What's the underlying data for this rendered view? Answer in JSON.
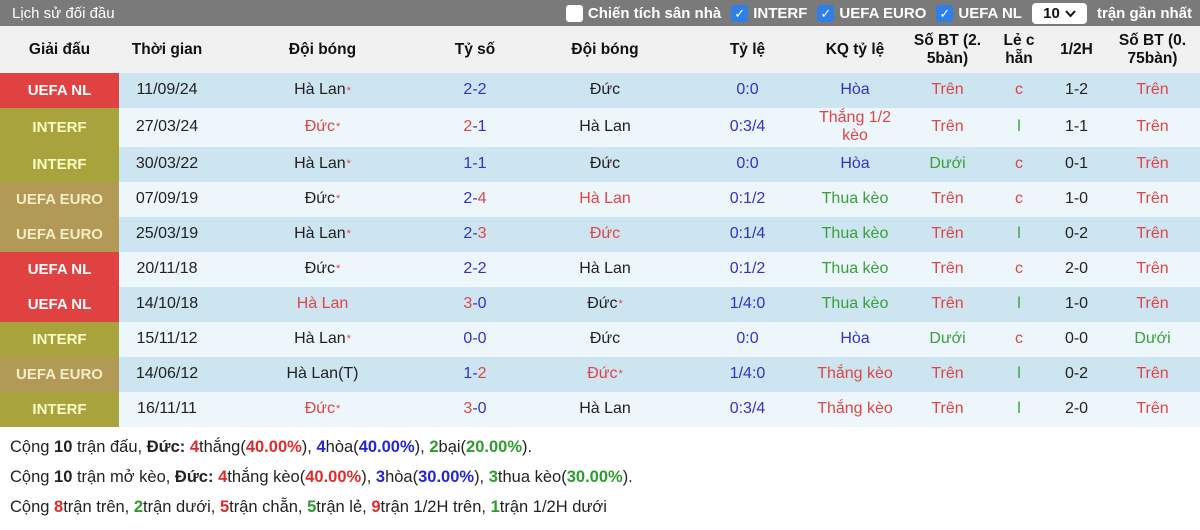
{
  "topbar": {
    "title": "Lịch sử đối đầu",
    "home_filter": {
      "label": "Chiến tích sân nhà",
      "checked": false
    },
    "filters": [
      {
        "label": "INTERF",
        "checked": true
      },
      {
        "label": "UEFA EURO",
        "checked": true
      },
      {
        "label": "UEFA NL",
        "checked": true
      }
    ],
    "match_count": "10",
    "match_count_suffix": "trận gần nhất",
    "checkbox_color": "#2f7fe8"
  },
  "table": {
    "headers": [
      "Giải đấu",
      "Thời gian",
      "Đội bóng",
      "Tỷ số",
      "Đội bóng",
      "Tỷ lệ",
      "KQ tỷ lệ",
      "Số BT (2.\n5bàn)",
      "Lẻ c\nhẵn",
      "1/2H",
      "Số BT (0.\n75bàn)"
    ],
    "rows": [
      {
        "league": "UEFA NL",
        "league_style": "red",
        "date": "11/09/24",
        "home": {
          "t": "Hà Lan",
          "c": "black",
          "star": true
        },
        "score": [
          {
            "t": "2",
            "c": "blue"
          },
          {
            "t": "-",
            "c": "blue"
          },
          {
            "t": "2",
            "c": "blue"
          }
        ],
        "away": {
          "t": "Đức",
          "c": "black",
          "star": false
        },
        "odds": "0:0",
        "kq": {
          "t": "Hòa",
          "c": "blue"
        },
        "bt25": {
          "t": "Trên",
          "c": "red"
        },
        "oe": {
          "t": "c",
          "c": "red"
        },
        "h12": "1-2",
        "bt075": {
          "t": "Trên",
          "c": "red"
        }
      },
      {
        "league": "INTERF",
        "league_style": "olive",
        "date": "27/03/24",
        "home": {
          "t": "Đức",
          "c": "red",
          "star": true
        },
        "score": [
          {
            "t": "2",
            "c": "red"
          },
          {
            "t": "-",
            "c": "blue"
          },
          {
            "t": "1",
            "c": "blue"
          }
        ],
        "away": {
          "t": "Hà Lan",
          "c": "black",
          "star": false
        },
        "odds": "0:3/4",
        "kq": {
          "t": "Thắng 1/2 kèo",
          "c": "red"
        },
        "bt25": {
          "t": "Trên",
          "c": "red"
        },
        "oe": {
          "t": "l",
          "c": "green"
        },
        "h12": "1-1",
        "bt075": {
          "t": "Trên",
          "c": "red"
        }
      },
      {
        "league": "INTERF",
        "league_style": "olive",
        "date": "30/03/22",
        "home": {
          "t": "Hà Lan",
          "c": "black",
          "star": true
        },
        "score": [
          {
            "t": "1",
            "c": "blue"
          },
          {
            "t": "-",
            "c": "blue"
          },
          {
            "t": "1",
            "c": "blue"
          }
        ],
        "away": {
          "t": "Đức",
          "c": "black",
          "star": false
        },
        "odds": "0:0",
        "kq": {
          "t": "Hòa",
          "c": "blue"
        },
        "bt25": {
          "t": "Dưới",
          "c": "green"
        },
        "oe": {
          "t": "c",
          "c": "red"
        },
        "h12": "0-1",
        "bt075": {
          "t": "Trên",
          "c": "red"
        }
      },
      {
        "league": "UEFA EURO",
        "league_style": "tan",
        "date": "07/09/19",
        "home": {
          "t": "Đức",
          "c": "black",
          "star": true
        },
        "score": [
          {
            "t": "2",
            "c": "blue"
          },
          {
            "t": "-",
            "c": "blue"
          },
          {
            "t": "4",
            "c": "red"
          }
        ],
        "away": {
          "t": "Hà Lan",
          "c": "red",
          "star": false
        },
        "odds": "0:1/2",
        "kq": {
          "t": "Thua kèo",
          "c": "green"
        },
        "bt25": {
          "t": "Trên",
          "c": "red"
        },
        "oe": {
          "t": "c",
          "c": "red"
        },
        "h12": "1-0",
        "bt075": {
          "t": "Trên",
          "c": "red"
        }
      },
      {
        "league": "UEFA EURO",
        "league_style": "tan",
        "date": "25/03/19",
        "home": {
          "t": "Hà Lan",
          "c": "black",
          "star": true
        },
        "score": [
          {
            "t": "2",
            "c": "blue"
          },
          {
            "t": "-",
            "c": "blue"
          },
          {
            "t": "3",
            "c": "red"
          }
        ],
        "away": {
          "t": "Đức",
          "c": "red",
          "star": false
        },
        "odds": "0:1/4",
        "kq": {
          "t": "Thua kèo",
          "c": "green"
        },
        "bt25": {
          "t": "Trên",
          "c": "red"
        },
        "oe": {
          "t": "l",
          "c": "green"
        },
        "h12": "0-2",
        "bt075": {
          "t": "Trên",
          "c": "red"
        }
      },
      {
        "league": "UEFA NL",
        "league_style": "red",
        "date": "20/11/18",
        "home": {
          "t": "Đức",
          "c": "black",
          "star": true
        },
        "score": [
          {
            "t": "2",
            "c": "blue"
          },
          {
            "t": "-",
            "c": "blue"
          },
          {
            "t": "2",
            "c": "blue"
          }
        ],
        "away": {
          "t": "Hà Lan",
          "c": "black",
          "star": false
        },
        "odds": "0:1/2",
        "kq": {
          "t": "Thua kèo",
          "c": "green"
        },
        "bt25": {
          "t": "Trên",
          "c": "red"
        },
        "oe": {
          "t": "c",
          "c": "red"
        },
        "h12": "2-0",
        "bt075": {
          "t": "Trên",
          "c": "red"
        }
      },
      {
        "league": "UEFA NL",
        "league_style": "red",
        "date": "14/10/18",
        "home": {
          "t": "Hà Lan",
          "c": "red",
          "star": false
        },
        "score": [
          {
            "t": "3",
            "c": "red"
          },
          {
            "t": "-",
            "c": "blue"
          },
          {
            "t": "0",
            "c": "blue"
          }
        ],
        "away": {
          "t": "Đức",
          "c": "black",
          "star": true
        },
        "odds": "1/4:0",
        "kq": {
          "t": "Thua kèo",
          "c": "green"
        },
        "bt25": {
          "t": "Trên",
          "c": "red"
        },
        "oe": {
          "t": "l",
          "c": "green"
        },
        "h12": "1-0",
        "bt075": {
          "t": "Trên",
          "c": "red"
        }
      },
      {
        "league": "INTERF",
        "league_style": "olive",
        "date": "15/11/12",
        "home": {
          "t": "Hà Lan",
          "c": "black",
          "star": true
        },
        "score": [
          {
            "t": "0",
            "c": "blue"
          },
          {
            "t": "-",
            "c": "blue"
          },
          {
            "t": "0",
            "c": "blue"
          }
        ],
        "away": {
          "t": "Đức",
          "c": "black",
          "star": false
        },
        "odds": "0:0",
        "kq": {
          "t": "Hòa",
          "c": "blue"
        },
        "bt25": {
          "t": "Dưới",
          "c": "green"
        },
        "oe": {
          "t": "c",
          "c": "red"
        },
        "h12": "0-0",
        "bt075": {
          "t": "Dưới",
          "c": "green"
        }
      },
      {
        "league": "UEFA EURO",
        "league_style": "tan",
        "date": "14/06/12",
        "home": {
          "t": "Hà Lan(T)",
          "c": "black",
          "star": false
        },
        "score": [
          {
            "t": "1",
            "c": "blue"
          },
          {
            "t": "-",
            "c": "blue"
          },
          {
            "t": "2",
            "c": "red"
          }
        ],
        "away": {
          "t": "Đức",
          "c": "red",
          "star": true
        },
        "odds": "1/4:0",
        "kq": {
          "t": "Thắng kèo",
          "c": "red"
        },
        "bt25": {
          "t": "Trên",
          "c": "red"
        },
        "oe": {
          "t": "l",
          "c": "green"
        },
        "h12": "0-2",
        "bt075": {
          "t": "Trên",
          "c": "red"
        }
      },
      {
        "league": "INTERF",
        "league_style": "olive",
        "date": "16/11/11",
        "home": {
          "t": "Đức",
          "c": "red",
          "star": true
        },
        "score": [
          {
            "t": "3",
            "c": "red"
          },
          {
            "t": "-",
            "c": "blue"
          },
          {
            "t": "0",
            "c": "blue"
          }
        ],
        "away": {
          "t": "Hà Lan",
          "c": "black",
          "star": false
        },
        "odds": "0:3/4",
        "kq": {
          "t": "Thắng kèo",
          "c": "red"
        },
        "bt25": {
          "t": "Trên",
          "c": "red"
        },
        "oe": {
          "t": "l",
          "c": "green"
        },
        "h12": "2-0",
        "bt075": {
          "t": "Trên",
          "c": "red"
        }
      }
    ]
  },
  "summary": {
    "lines": [
      [
        {
          "t": "Cộng "
        },
        {
          "t": "10",
          "b": true
        },
        {
          "t": " trận đấu, "
        },
        {
          "t": "Đức",
          "b": true
        },
        {
          "t": ": ",
          "b": true
        },
        {
          "t": "4",
          "c": "red",
          "b": true
        },
        {
          "t": "thắng("
        },
        {
          "t": "40.00%",
          "c": "red",
          "b": true
        },
        {
          "t": "), "
        },
        {
          "t": "4",
          "c": "blue",
          "b": true
        },
        {
          "t": "hòa("
        },
        {
          "t": "40.00%",
          "c": "blue",
          "b": true
        },
        {
          "t": "), "
        },
        {
          "t": "2",
          "c": "green",
          "b": true
        },
        {
          "t": "bại("
        },
        {
          "t": "20.00%",
          "c": "green",
          "b": true
        },
        {
          "t": ")."
        }
      ],
      [
        {
          "t": "Cộng "
        },
        {
          "t": "10",
          "b": true
        },
        {
          "t": " trận mở kèo, "
        },
        {
          "t": "Đức",
          "b": true
        },
        {
          "t": ": ",
          "b": true
        },
        {
          "t": "4",
          "c": "red",
          "b": true
        },
        {
          "t": "thắng kèo("
        },
        {
          "t": "40.00%",
          "c": "red",
          "b": true
        },
        {
          "t": "), "
        },
        {
          "t": "3",
          "c": "blue",
          "b": true
        },
        {
          "t": "hòa("
        },
        {
          "t": "30.00%",
          "c": "blue",
          "b": true
        },
        {
          "t": "), "
        },
        {
          "t": "3",
          "c": "green",
          "b": true
        },
        {
          "t": "thua kèo("
        },
        {
          "t": "30.00%",
          "c": "green",
          "b": true
        },
        {
          "t": ")."
        }
      ],
      [
        {
          "t": "Cộng "
        },
        {
          "t": "8",
          "c": "red",
          "b": true
        },
        {
          "t": "trận trên, "
        },
        {
          "t": "2",
          "c": "green",
          "b": true
        },
        {
          "t": "trận dưới, "
        },
        {
          "t": "5",
          "c": "red",
          "b": true
        },
        {
          "t": "trận chẵn, "
        },
        {
          "t": "5",
          "c": "green",
          "b": true
        },
        {
          "t": "trận lẻ, "
        },
        {
          "t": "9",
          "c": "red",
          "b": true
        },
        {
          "t": "trận 1/2H trên, "
        },
        {
          "t": "1",
          "c": "green",
          "b": true
        },
        {
          "t": "trận 1/2H dưới"
        }
      ]
    ]
  },
  "colors": {
    "topbar_bg": "#7a7a7a",
    "header_bg": "#f1f1f1",
    "row_odd_bg": "#cde4f1",
    "row_even_bg": "#ecf6fb",
    "badge_red": "#e04141",
    "badge_olive": "#a8a33d",
    "badge_tan": "#b19a56",
    "text_red": "#e04545",
    "text_blue": "#3232c8",
    "text_green": "#3aa03a"
  }
}
